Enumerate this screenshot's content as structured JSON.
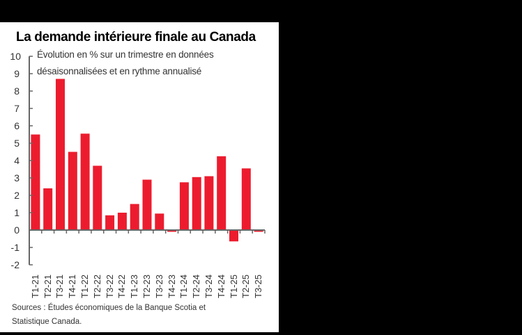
{
  "chart_data": {
    "type": "bar",
    "title": "La demande intérieure finale au Canada",
    "subtitle_lines": [
      "Évolution en % sur un trimestre en données",
      "désaisonnalisées et en rythme annualisé"
    ],
    "xlabel": "",
    "ylabel": "",
    "ylim": [
      -2,
      10
    ],
    "yticks": [
      10,
      9,
      8,
      7,
      6,
      5,
      4,
      3,
      2,
      1,
      0,
      -1,
      -2
    ],
    "grid": false,
    "legend": null,
    "categories": [
      "T1-21",
      "T2-21",
      "T3-21",
      "T4-21",
      "T1-22",
      "T2-22",
      "T3-22",
      "T4-22",
      "T1-23",
      "T2-23",
      "T3-23",
      "T4-23",
      "T1-24",
      "T2-24",
      "T3-24",
      "T4-24",
      "T1-25",
      "T2-25",
      "T3-25"
    ],
    "values": [
      5.5,
      2.4,
      8.7,
      4.5,
      5.55,
      3.7,
      0.85,
      1.0,
      1.5,
      2.9,
      0.95,
      -0.1,
      2.75,
      3.05,
      3.1,
      4.25,
      -0.65,
      3.55,
      -0.1
    ],
    "bar_color": "#EC1C2E",
    "source_lines": [
      "Sources : Études économiques de la Banque Scotia et",
      "Statistique Canada."
    ]
  }
}
